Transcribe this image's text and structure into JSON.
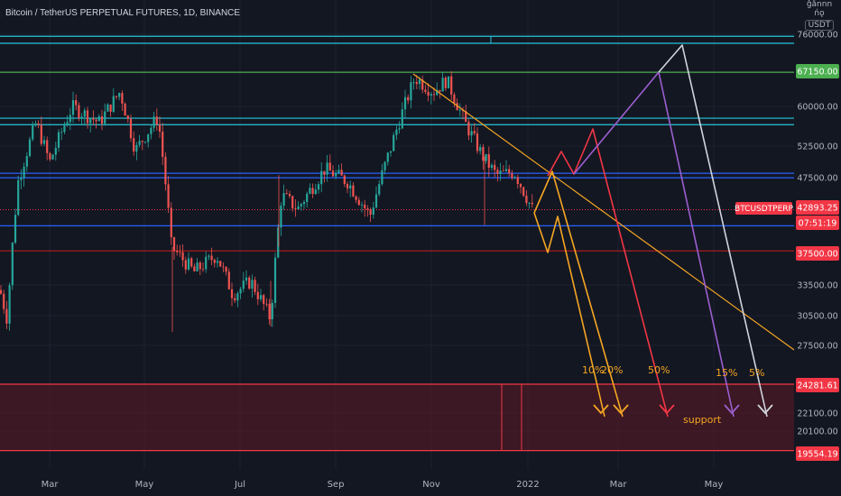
{
  "header": {
    "title": "Bitcoin / TetherUS PERPETUAL FUTURES, 1D, BINANCE",
    "scale_top": "ĝǻnnn ńǫ",
    "currency": "USDT"
  },
  "chart_data": {
    "type": "candlestick",
    "symbol": "BTCUSDTPERP",
    "interval": "1D",
    "exchange": "BINANCE",
    "y_ticks": [
      76000,
      67150,
      60000,
      52500,
      47500,
      42893.25,
      37500,
      33500,
      30500,
      27500,
      24281.61,
      22100,
      20100,
      19554.19
    ],
    "y_tick_labels": [
      "76000.00",
      "60000.00",
      "52500.00",
      "47500.00",
      "33500.00",
      "30500.00",
      "27500.00",
      "22100.00",
      "20100.00"
    ],
    "x_tick_labels": [
      "Mar",
      "May",
      "Jul",
      "Sep",
      "Nov",
      "2022",
      "Mar",
      "May"
    ],
    "price_tags": [
      {
        "value": "67150.00",
        "color": "#4caf50",
        "text_color": "#ffffff"
      },
      {
        "value": "42893.25",
        "color": "#f23645",
        "text_color": "#ffffff"
      },
      {
        "value": "07:51:19",
        "color": "#f23645",
        "text_color": "#ffffff"
      },
      {
        "value": "37500.00",
        "color": "#f23645",
        "text_color": "#ffffff"
      },
      {
        "value": "24281.61",
        "color": "#f23645",
        "text_color": "#ffffff"
      },
      {
        "value": "19554.19",
        "color": "#f23645",
        "text_color": "#ffffff"
      }
    ],
    "symbol_tag": "BTCUSDTPERP",
    "horizontal_levels": [
      {
        "price": 75500,
        "color": "#26c6da"
      },
      {
        "price": 73800,
        "color": "#26c6da"
      },
      {
        "price": 67150,
        "color": "#4caf50"
      },
      {
        "price": 57800,
        "color": "#26c6da"
      },
      {
        "price": 56600,
        "color": "#26c6da"
      },
      {
        "price": 48300,
        "color": "#2962ff"
      },
      {
        "price": 47600,
        "color": "#2962ff"
      },
      {
        "price": 40700,
        "color": "#2962ff"
      },
      {
        "price": 37500,
        "color": "#b71c1c"
      }
    ],
    "support_zone": {
      "from": 19554.19,
      "to": 24281.61,
      "label": "support"
    },
    "scenarios": [
      {
        "label": "10%",
        "color": "#f5a623"
      },
      {
        "label": "20%",
        "color": "#f5a623"
      },
      {
        "label": "50%",
        "color": "#f23645"
      },
      {
        "label": "15%",
        "color": "#9c5fd0"
      },
      {
        "label": "5%",
        "color": "#d1d4dc"
      }
    ],
    "label_color": "#f5a623"
  }
}
